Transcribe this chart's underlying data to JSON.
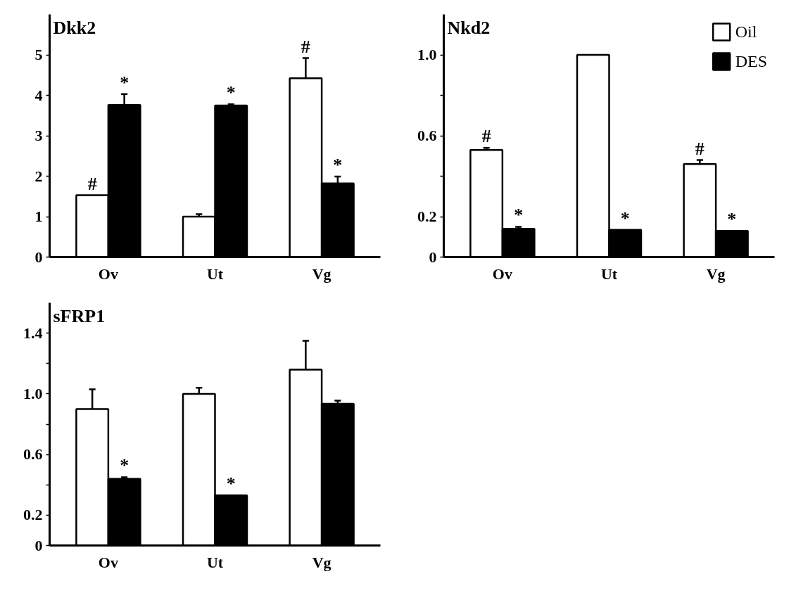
{
  "chart_data": [
    {
      "type": "bar",
      "title": "Dkk2",
      "categories": [
        "Ov",
        "Ut",
        "Vg"
      ],
      "ylim": [
        0,
        6
      ],
      "yticks": [
        0,
        1,
        2,
        3,
        4,
        5
      ],
      "grid": false,
      "legend": false,
      "series": [
        {
          "color": "#ffffff",
          "values": [
            1.53,
            1.0,
            4.42
          ],
          "errors": [
            null,
            0.06,
            0.5
          ]
        },
        {
          "color": "#000000",
          "values": [
            3.76,
            3.75,
            1.82
          ],
          "errors": [
            0.27,
            0.03,
            0.17
          ]
        }
      ],
      "annotations": [
        {
          "text": "#",
          "x": "Ov",
          "y": 1.53
        },
        {
          "text": "*",
          "x": "Ov",
          "y": 3.76
        },
        {
          "text": "*",
          "x": "Ut",
          "y": 3.75
        },
        {
          "text": "#",
          "x": "Vg",
          "y": 4.42
        },
        {
          "text": "*",
          "x": "Vg",
          "y": 1.82
        }
      ]
    },
    {
      "type": "bar",
      "title": "Nkd2",
      "categories": [
        "Ov",
        "Ut",
        "Vg"
      ],
      "ylim": [
        0,
        1.2
      ],
      "yticks": [
        0,
        0.2,
        {
          "value": 0.4,
          "label": null
        },
        0.6,
        {
          "value": 0.8,
          "label": null
        },
        "1.0"
      ],
      "grid": false,
      "legend": "top right",
      "series": [
        {
          "name": "Oil",
          "color": "#ffffff",
          "values": [
            0.53,
            1.0,
            0.46
          ],
          "errors": [
            0.01,
            null,
            0.02
          ]
        },
        {
          "name": "DES",
          "color": "#000000",
          "values": [
            0.14,
            0.135,
            0.13
          ],
          "errors": [
            0.01,
            null,
            null
          ]
        }
      ],
      "annotations": [
        {
          "text": "#",
          "x": "Ov",
          "y": 0.53
        },
        {
          "text": "*",
          "x": "Ov",
          "y": 0.14
        },
        {
          "text": "*",
          "x": "Ut",
          "y": 0.135
        },
        {
          "text": "#",
          "x": "Vg",
          "y": 0.46
        },
        {
          "text": "*",
          "x": "Vg",
          "y": 0.13
        }
      ]
    },
    {
      "type": "bar",
      "title": "sFRP1",
      "categories": [
        "Ov",
        "Ut",
        "Vg"
      ],
      "ylim": [
        0,
        1.6
      ],
      "yticks": [
        0,
        0.2,
        {
          "value": 0.4,
          "label": null
        },
        0.6,
        {
          "value": 0.8,
          "label": null
        },
        "1.0",
        {
          "value": 1.2,
          "label": null
        },
        1.4
      ],
      "grid": false,
      "legend": false,
      "series": [
        {
          "color": "#ffffff",
          "values": [
            0.9,
            1.0,
            1.16
          ],
          "errors": [
            0.13,
            0.04,
            0.19
          ]
        },
        {
          "color": "#000000",
          "values": [
            0.44,
            0.33,
            0.935
          ],
          "errors": [
            0.01,
            null,
            0.02
          ]
        }
      ],
      "annotations": [
        {
          "text": "*",
          "x": "Ov",
          "y": 0.44
        },
        {
          "text": "*",
          "x": "Ut",
          "y": 0.33
        }
      ]
    }
  ]
}
